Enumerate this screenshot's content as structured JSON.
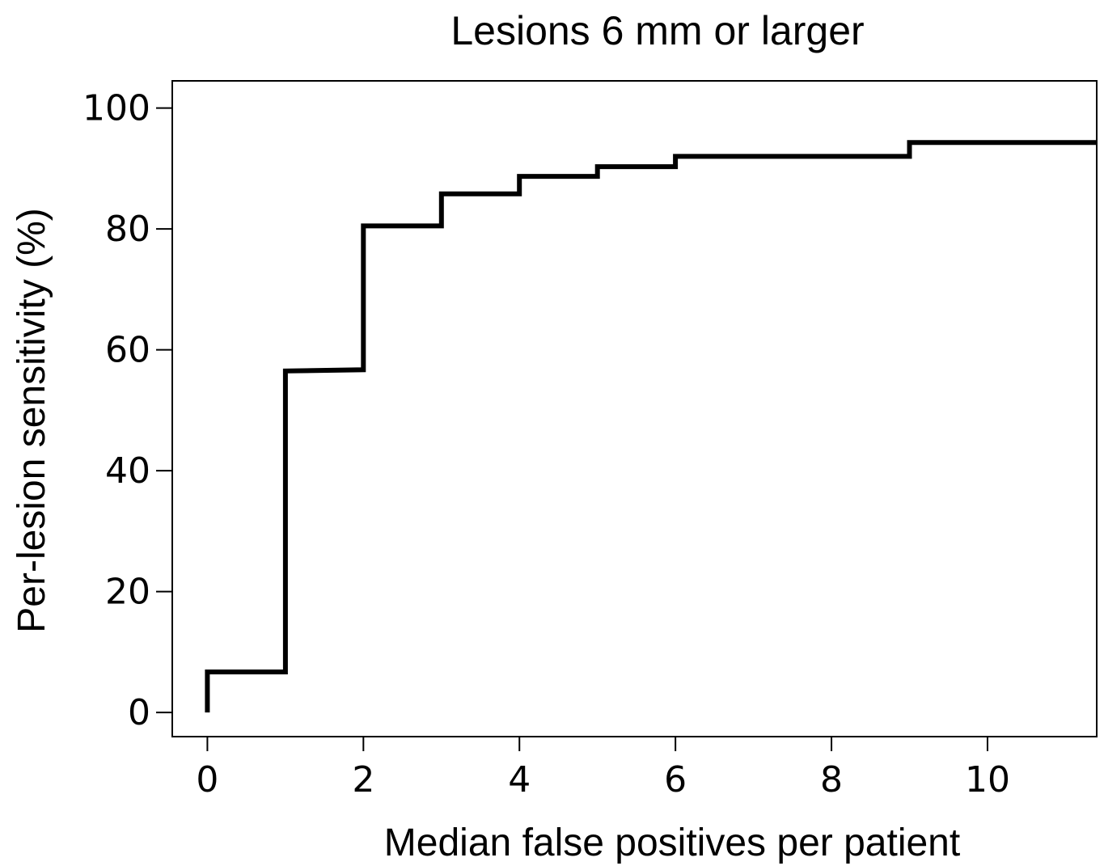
{
  "chart_data": {
    "type": "line",
    "step": true,
    "title": "Lesions 6 mm or larger",
    "xlabel": "Median false positives per patient",
    "ylabel": "Per-lesion sensitivity (%)",
    "xlim": [
      -0.45,
      11.4
    ],
    "ylim": [
      -4,
      104.5
    ],
    "xticks": [
      0,
      2,
      4,
      6,
      8,
      10
    ],
    "yticks": [
      0,
      20,
      40,
      60,
      80,
      100
    ],
    "grid": false,
    "series": [
      {
        "x": [
          0,
          0,
          1,
          1,
          2,
          2,
          3,
          3,
          4,
          4,
          5,
          5,
          6,
          6,
          9,
          9,
          11.4
        ],
        "y": [
          0,
          6.7,
          6.7,
          56.5,
          56.7,
          80.5,
          80.5,
          85.8,
          85.8,
          88.7,
          88.7,
          90.3,
          90.3,
          92.0,
          92.0,
          94.3,
          94.3
        ],
        "color": "#000000"
      }
    ]
  }
}
